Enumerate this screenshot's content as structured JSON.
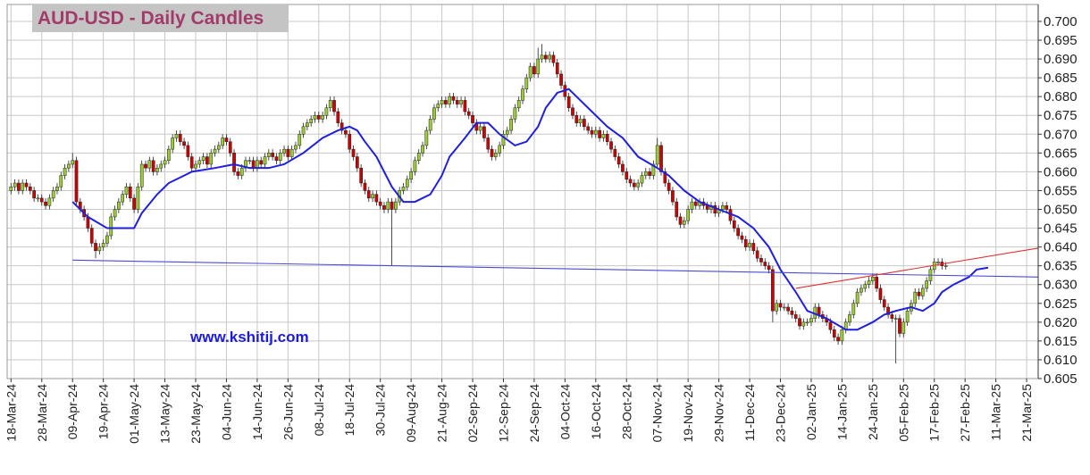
{
  "chart_data": {
    "type": "candlestick",
    "title": "AUD-USD - Daily Candles",
    "watermark": "www.kshitij.com",
    "xlim": [
      -1,
      267
    ],
    "ylim": [
      0.605,
      0.7045
    ],
    "grid": true,
    "up_color": "#9acd32",
    "down_color": "#cc0000",
    "xticks": [
      {
        "value": 0,
        "label": "18-Mar-24"
      },
      {
        "value": 8,
        "label": "28-Mar-24"
      },
      {
        "value": 16,
        "label": "09-Apr-24"
      },
      {
        "value": 24,
        "label": "19-Apr-24"
      },
      {
        "value": 32,
        "label": "01-May-24"
      },
      {
        "value": 40,
        "label": "13-May-24"
      },
      {
        "value": 48,
        "label": "23-May-24"
      },
      {
        "value": 56,
        "label": "04-Jun-24"
      },
      {
        "value": 64,
        "label": "14-Jun-24"
      },
      {
        "value": 72,
        "label": "26-Jun-24"
      },
      {
        "value": 80,
        "label": "08-Jul-24"
      },
      {
        "value": 88,
        "label": "18-Jul-24"
      },
      {
        "value": 96,
        "label": "30-Jul-24"
      },
      {
        "value": 104,
        "label": "09-Aug-24"
      },
      {
        "value": 112,
        "label": "21-Aug-24"
      },
      {
        "value": 120,
        "label": "02-Sep-24"
      },
      {
        "value": 128,
        "label": "12-Sep-24"
      },
      {
        "value": 136,
        "label": "24-Sep-24"
      },
      {
        "value": 144,
        "label": "04-Oct-24"
      },
      {
        "value": 152,
        "label": "16-Oct-24"
      },
      {
        "value": 160,
        "label": "28-Oct-24"
      },
      {
        "value": 168,
        "label": "07-Nov-24"
      },
      {
        "value": 176,
        "label": "19-Nov-24"
      },
      {
        "value": 184,
        "label": "29-Nov-24"
      },
      {
        "value": 192,
        "label": "11-Dec-24"
      },
      {
        "value": 200,
        "label": "23-Dec-24"
      },
      {
        "value": 208,
        "label": "02-Jan-25"
      },
      {
        "value": 216,
        "label": "14-Jan-25"
      },
      {
        "value": 224,
        "label": "24-Jan-25"
      },
      {
        "value": 232,
        "label": "05-Feb-25"
      },
      {
        "value": 240,
        "label": "17-Feb-25"
      },
      {
        "value": 248,
        "label": "27-Feb-25"
      },
      {
        "value": 256,
        "label": "11-Mar-25"
      },
      {
        "value": 264,
        "label": "21-Mar-25"
      }
    ],
    "yticks": [
      {
        "value": 0.605,
        "label": "0.605"
      },
      {
        "value": 0.61,
        "label": "0.610"
      },
      {
        "value": 0.615,
        "label": "0.615"
      },
      {
        "value": 0.62,
        "label": "0.620"
      },
      {
        "value": 0.625,
        "label": "0.625"
      },
      {
        "value": 0.63,
        "label": "0.630"
      },
      {
        "value": 0.635,
        "label": "0.635"
      },
      {
        "value": 0.64,
        "label": "0.640"
      },
      {
        "value": 0.645,
        "label": "0.645"
      },
      {
        "value": 0.65,
        "label": "0.650"
      },
      {
        "value": 0.655,
        "label": "0.655"
      },
      {
        "value": 0.66,
        "label": "0.660"
      },
      {
        "value": 0.665,
        "label": "0.665"
      },
      {
        "value": 0.67,
        "label": "0.670"
      },
      {
        "value": 0.675,
        "label": "0.675"
      },
      {
        "value": 0.68,
        "label": "0.680"
      },
      {
        "value": 0.685,
        "label": "0.685"
      },
      {
        "value": 0.69,
        "label": "0.690"
      },
      {
        "value": 0.695,
        "label": "0.695"
      },
      {
        "value": 0.7,
        "label": "0.700"
      }
    ],
    "open": [
      0.655,
      0.656,
      0.657,
      0.655,
      0.657,
      0.656,
      0.655,
      0.653,
      0.653,
      0.652,
      0.651,
      0.653,
      0.655,
      0.656,
      0.659,
      0.661,
      0.662,
      0.663,
      0.652,
      0.65,
      0.648,
      0.645,
      0.641,
      0.639,
      0.64,
      0.641,
      0.643,
      0.648,
      0.65,
      0.652,
      0.654,
      0.656,
      0.653,
      0.65,
      0.656,
      0.662,
      0.661,
      0.663,
      0.66,
      0.661,
      0.662,
      0.663,
      0.666,
      0.669,
      0.67,
      0.668,
      0.667,
      0.664,
      0.661,
      0.662,
      0.663,
      0.664,
      0.662,
      0.665,
      0.666,
      0.667,
      0.669,
      0.668,
      0.665,
      0.66,
      0.659,
      0.661,
      0.663,
      0.663,
      0.661,
      0.663,
      0.662,
      0.664,
      0.665,
      0.664,
      0.663,
      0.665,
      0.666,
      0.664,
      0.666,
      0.667,
      0.67,
      0.672,
      0.673,
      0.674,
      0.675,
      0.674,
      0.675,
      0.677,
      0.679,
      0.676,
      0.673,
      0.671,
      0.67,
      0.666,
      0.664,
      0.661,
      0.657,
      0.655,
      0.653,
      0.654,
      0.652,
      0.651,
      0.65,
      0.652,
      0.65,
      0.652,
      0.655,
      0.656,
      0.658,
      0.66,
      0.663,
      0.665,
      0.667,
      0.671,
      0.674,
      0.677,
      0.678,
      0.679,
      0.678,
      0.68,
      0.679,
      0.678,
      0.679,
      0.676,
      0.675,
      0.673,
      0.671,
      0.672,
      0.669,
      0.666,
      0.664,
      0.665,
      0.667,
      0.67,
      0.671,
      0.674,
      0.677,
      0.679,
      0.682,
      0.685,
      0.688,
      0.686,
      0.69,
      0.691,
      0.69,
      0.691,
      0.689,
      0.686,
      0.683,
      0.68,
      0.677,
      0.675,
      0.673,
      0.674,
      0.672,
      0.671,
      0.67,
      0.671,
      0.669,
      0.67,
      0.668,
      0.666,
      0.664,
      0.662,
      0.66,
      0.658,
      0.657,
      0.656,
      0.657,
      0.659,
      0.66,
      0.659,
      0.662,
      0.667,
      0.66,
      0.657,
      0.655,
      0.652,
      0.648,
      0.646,
      0.647,
      0.65,
      0.652,
      0.651,
      0.652,
      0.651,
      0.65,
      0.651,
      0.649,
      0.65,
      0.651,
      0.65,
      0.647,
      0.645,
      0.643,
      0.642,
      0.64,
      0.641,
      0.639,
      0.637,
      0.636,
      0.635,
      0.634,
      0.623,
      0.625,
      0.624,
      0.624,
      0.623,
      0.622,
      0.621,
      0.619,
      0.62,
      0.62,
      0.621,
      0.624,
      0.622,
      0.621,
      0.62,
      0.618,
      0.616,
      0.615,
      0.618,
      0.62,
      0.622,
      0.625,
      0.628,
      0.629,
      0.63,
      0.631,
      0.632,
      0.629,
      0.626,
      0.624,
      0.622,
      0.621,
      0.621,
      0.617,
      0.62,
      0.623,
      0.625,
      0.628,
      0.627,
      0.629,
      0.631,
      0.634,
      0.636,
      0.636,
      0.635
    ],
    "high": [
      0.657,
      0.658,
      0.658,
      0.658,
      0.658,
      0.657,
      0.656,
      0.654,
      0.654,
      0.653,
      0.654,
      0.656,
      0.657,
      0.66,
      0.662,
      0.663,
      0.665,
      0.664,
      0.653,
      0.651,
      0.649,
      0.646,
      0.642,
      0.641,
      0.642,
      0.644,
      0.649,
      0.651,
      0.653,
      0.655,
      0.657,
      0.657,
      0.654,
      0.657,
      0.663,
      0.663,
      0.664,
      0.664,
      0.662,
      0.663,
      0.664,
      0.667,
      0.67,
      0.671,
      0.671,
      0.669,
      0.668,
      0.665,
      0.663,
      0.664,
      0.665,
      0.665,
      0.666,
      0.667,
      0.668,
      0.67,
      0.67,
      0.669,
      0.666,
      0.661,
      0.662,
      0.664,
      0.664,
      0.664,
      0.664,
      0.664,
      0.665,
      0.666,
      0.666,
      0.665,
      0.666,
      0.667,
      0.667,
      0.667,
      0.668,
      0.671,
      0.673,
      0.674,
      0.675,
      0.676,
      0.676,
      0.676,
      0.678,
      0.68,
      0.68,
      0.677,
      0.674,
      0.672,
      0.671,
      0.667,
      0.665,
      0.662,
      0.658,
      0.656,
      0.655,
      0.655,
      0.653,
      0.652,
      0.653,
      0.653,
      0.653,
      0.656,
      0.657,
      0.659,
      0.661,
      0.664,
      0.666,
      0.668,
      0.672,
      0.675,
      0.678,
      0.679,
      0.68,
      0.68,
      0.681,
      0.681,
      0.68,
      0.68,
      0.68,
      0.677,
      0.676,
      0.674,
      0.673,
      0.673,
      0.67,
      0.667,
      0.666,
      0.668,
      0.671,
      0.672,
      0.675,
      0.678,
      0.68,
      0.683,
      0.686,
      0.689,
      0.689,
      0.693,
      0.694,
      0.692,
      0.692,
      0.692,
      0.69,
      0.687,
      0.684,
      0.681,
      0.678,
      0.676,
      0.675,
      0.675,
      0.673,
      0.672,
      0.672,
      0.672,
      0.671,
      0.671,
      0.669,
      0.667,
      0.665,
      0.663,
      0.661,
      0.659,
      0.658,
      0.658,
      0.66,
      0.661,
      0.661,
      0.663,
      0.669,
      0.668,
      0.661,
      0.658,
      0.656,
      0.653,
      0.649,
      0.648,
      0.651,
      0.653,
      0.653,
      0.653,
      0.653,
      0.652,
      0.652,
      0.652,
      0.651,
      0.652,
      0.652,
      0.651,
      0.648,
      0.646,
      0.644,
      0.643,
      0.642,
      0.642,
      0.64,
      0.638,
      0.637,
      0.636,
      0.635,
      0.626,
      0.626,
      0.625,
      0.625,
      0.624,
      0.623,
      0.622,
      0.621,
      0.621,
      0.622,
      0.625,
      0.625,
      0.623,
      0.622,
      0.621,
      0.619,
      0.617,
      0.619,
      0.621,
      0.623,
      0.626,
      0.629,
      0.63,
      0.631,
      0.632,
      0.633,
      0.633,
      0.63,
      0.627,
      0.625,
      0.623,
      0.622,
      0.622,
      0.621,
      0.624,
      0.626,
      0.629,
      0.629,
      0.63,
      0.632,
      0.635,
      0.637,
      0.637,
      0.637,
      0.636
    ],
    "low": [
      0.654,
      0.655,
      0.654,
      0.654,
      0.655,
      0.654,
      0.652,
      0.652,
      0.651,
      0.65,
      0.65,
      0.652,
      0.654,
      0.655,
      0.658,
      0.66,
      0.661,
      0.651,
      0.649,
      0.647,
      0.644,
      0.64,
      0.637,
      0.638,
      0.639,
      0.64,
      0.642,
      0.647,
      0.649,
      0.651,
      0.653,
      0.652,
      0.649,
      0.649,
      0.655,
      0.66,
      0.66,
      0.659,
      0.659,
      0.66,
      0.661,
      0.662,
      0.665,
      0.668,
      0.667,
      0.666,
      0.663,
      0.66,
      0.66,
      0.661,
      0.662,
      0.661,
      0.661,
      0.664,
      0.665,
      0.666,
      0.667,
      0.664,
      0.659,
      0.658,
      0.658,
      0.66,
      0.662,
      0.66,
      0.66,
      0.661,
      0.661,
      0.663,
      0.663,
      0.662,
      0.662,
      0.664,
      0.663,
      0.663,
      0.665,
      0.666,
      0.669,
      0.671,
      0.672,
      0.673,
      0.673,
      0.673,
      0.674,
      0.676,
      0.675,
      0.672,
      0.67,
      0.669,
      0.665,
      0.663,
      0.66,
      0.656,
      0.654,
      0.652,
      0.652,
      0.651,
      0.65,
      0.649,
      0.649,
      0.635,
      0.649,
      0.651,
      0.654,
      0.655,
      0.657,
      0.659,
      0.662,
      0.664,
      0.666,
      0.67,
      0.673,
      0.676,
      0.677,
      0.677,
      0.677,
      0.678,
      0.677,
      0.677,
      0.675,
      0.674,
      0.672,
      0.67,
      0.67,
      0.668,
      0.665,
      0.663,
      0.663,
      0.664,
      0.666,
      0.669,
      0.67,
      0.673,
      0.676,
      0.678,
      0.681,
      0.684,
      0.685,
      0.685,
      0.689,
      0.689,
      0.689,
      0.688,
      0.685,
      0.682,
      0.679,
      0.676,
      0.674,
      0.672,
      0.672,
      0.671,
      0.67,
      0.669,
      0.669,
      0.668,
      0.668,
      0.667,
      0.665,
      0.663,
      0.661,
      0.659,
      0.657,
      0.656,
      0.655,
      0.655,
      0.656,
      0.658,
      0.658,
      0.658,
      0.661,
      0.659,
      0.656,
      0.654,
      0.651,
      0.647,
      0.645,
      0.645,
      0.646,
      0.649,
      0.65,
      0.65,
      0.65,
      0.649,
      0.649,
      0.648,
      0.648,
      0.649,
      0.649,
      0.646,
      0.644,
      0.642,
      0.641,
      0.639,
      0.639,
      0.638,
      0.636,
      0.635,
      0.634,
      0.633,
      0.62,
      0.622,
      0.623,
      0.623,
      0.622,
      0.621,
      0.62,
      0.618,
      0.618,
      0.619,
      0.619,
      0.62,
      0.621,
      0.62,
      0.619,
      0.617,
      0.615,
      0.614,
      0.614,
      0.617,
      0.619,
      0.621,
      0.624,
      0.627,
      0.628,
      0.629,
      0.63,
      0.628,
      0.625,
      0.623,
      0.621,
      0.62,
      0.609,
      0.616,
      0.616,
      0.619,
      0.622,
      0.624,
      0.626,
      0.626,
      0.628,
      0.63,
      0.633,
      0.635,
      0.634,
      0.634
    ],
    "close": [
      0.656,
      0.657,
      0.655,
      0.657,
      0.656,
      0.655,
      0.653,
      0.653,
      0.652,
      0.651,
      0.653,
      0.655,
      0.656,
      0.659,
      0.661,
      0.662,
      0.663,
      0.652,
      0.65,
      0.648,
      0.645,
      0.641,
      0.639,
      0.64,
      0.641,
      0.643,
      0.648,
      0.65,
      0.652,
      0.654,
      0.656,
      0.653,
      0.65,
      0.656,
      0.662,
      0.661,
      0.663,
      0.66,
      0.661,
      0.662,
      0.663,
      0.666,
      0.669,
      0.67,
      0.668,
      0.667,
      0.664,
      0.661,
      0.662,
      0.663,
      0.664,
      0.662,
      0.665,
      0.666,
      0.667,
      0.669,
      0.668,
      0.665,
      0.66,
      0.659,
      0.661,
      0.663,
      0.663,
      0.661,
      0.663,
      0.662,
      0.664,
      0.665,
      0.664,
      0.663,
      0.665,
      0.666,
      0.664,
      0.666,
      0.667,
      0.67,
      0.672,
      0.673,
      0.674,
      0.675,
      0.674,
      0.675,
      0.677,
      0.679,
      0.676,
      0.673,
      0.671,
      0.67,
      0.666,
      0.664,
      0.661,
      0.657,
      0.655,
      0.653,
      0.654,
      0.652,
      0.651,
      0.65,
      0.652,
      0.65,
      0.652,
      0.655,
      0.656,
      0.658,
      0.66,
      0.663,
      0.665,
      0.667,
      0.671,
      0.674,
      0.677,
      0.678,
      0.679,
      0.678,
      0.68,
      0.679,
      0.678,
      0.679,
      0.676,
      0.675,
      0.673,
      0.671,
      0.672,
      0.669,
      0.666,
      0.664,
      0.665,
      0.667,
      0.67,
      0.671,
      0.674,
      0.677,
      0.679,
      0.682,
      0.685,
      0.688,
      0.686,
      0.69,
      0.691,
      0.69,
      0.691,
      0.689,
      0.686,
      0.683,
      0.68,
      0.677,
      0.675,
      0.673,
      0.674,
      0.672,
      0.671,
      0.67,
      0.671,
      0.669,
      0.67,
      0.668,
      0.666,
      0.664,
      0.662,
      0.66,
      0.658,
      0.657,
      0.656,
      0.657,
      0.659,
      0.66,
      0.659,
      0.662,
      0.667,
      0.66,
      0.657,
      0.655,
      0.652,
      0.648,
      0.646,
      0.647,
      0.65,
      0.652,
      0.651,
      0.652,
      0.651,
      0.65,
      0.651,
      0.649,
      0.65,
      0.651,
      0.65,
      0.647,
      0.645,
      0.643,
      0.642,
      0.64,
      0.641,
      0.639,
      0.637,
      0.636,
      0.635,
      0.634,
      0.623,
      0.625,
      0.624,
      0.624,
      0.623,
      0.622,
      0.621,
      0.619,
      0.62,
      0.62,
      0.621,
      0.624,
      0.622,
      0.621,
      0.62,
      0.618,
      0.616,
      0.615,
      0.618,
      0.62,
      0.622,
      0.625,
      0.628,
      0.629,
      0.63,
      0.631,
      0.632,
      0.629,
      0.626,
      0.624,
      0.622,
      0.621,
      0.621,
      0.617,
      0.62,
      0.623,
      0.625,
      0.628,
      0.627,
      0.629,
      0.631,
      0.634,
      0.636,
      0.636,
      0.635,
      0.635
    ],
    "overlays": [
      {
        "type": "line",
        "color": "#1f1fe0",
        "x": [
          16,
          20,
          25,
          30,
          32,
          34,
          38,
          41,
          45,
          47,
          53,
          58,
          62,
          67,
          71,
          76,
          81,
          85,
          88,
          90,
          92,
          95,
          97,
          99,
          102,
          105,
          109,
          112,
          114,
          118,
          121,
          124,
          127,
          131,
          134,
          137,
          139,
          142,
          145,
          147,
          151,
          155,
          159,
          163,
          168,
          171,
          175,
          179,
          184,
          189,
          193,
          197,
          200,
          204,
          207,
          212,
          217,
          220,
          224,
          227,
          230,
          234,
          237,
          240,
          242,
          245,
          249,
          251,
          254
        ],
        "values": [
          0.652,
          0.648,
          0.645,
          0.645,
          0.645,
          0.649,
          0.654,
          0.657,
          0.659,
          0.66,
          0.661,
          0.662,
          0.661,
          0.661,
          0.662,
          0.665,
          0.669,
          0.671,
          0.672,
          0.671,
          0.668,
          0.664,
          0.66,
          0.656,
          0.652,
          0.652,
          0.654,
          0.659,
          0.664,
          0.669,
          0.673,
          0.673,
          0.67,
          0.667,
          0.668,
          0.672,
          0.677,
          0.681,
          0.682,
          0.68,
          0.676,
          0.672,
          0.669,
          0.664,
          0.661,
          0.659,
          0.655,
          0.652,
          0.65,
          0.648,
          0.645,
          0.64,
          0.634,
          0.628,
          0.623,
          0.621,
          0.618,
          0.618,
          0.62,
          0.622,
          0.623,
          0.624,
          0.623,
          0.625,
          0.628,
          0.63,
          0.632,
          0.634,
          0.6345
        ]
      },
      {
        "type": "line",
        "color": "#4a4ad8",
        "x": [
          16,
          267
        ],
        "values": [
          0.6365,
          0.632
        ]
      },
      {
        "type": "line",
        "color": "#e03030",
        "x": [
          204,
          267
        ],
        "values": [
          0.629,
          0.6397
        ]
      }
    ]
  }
}
